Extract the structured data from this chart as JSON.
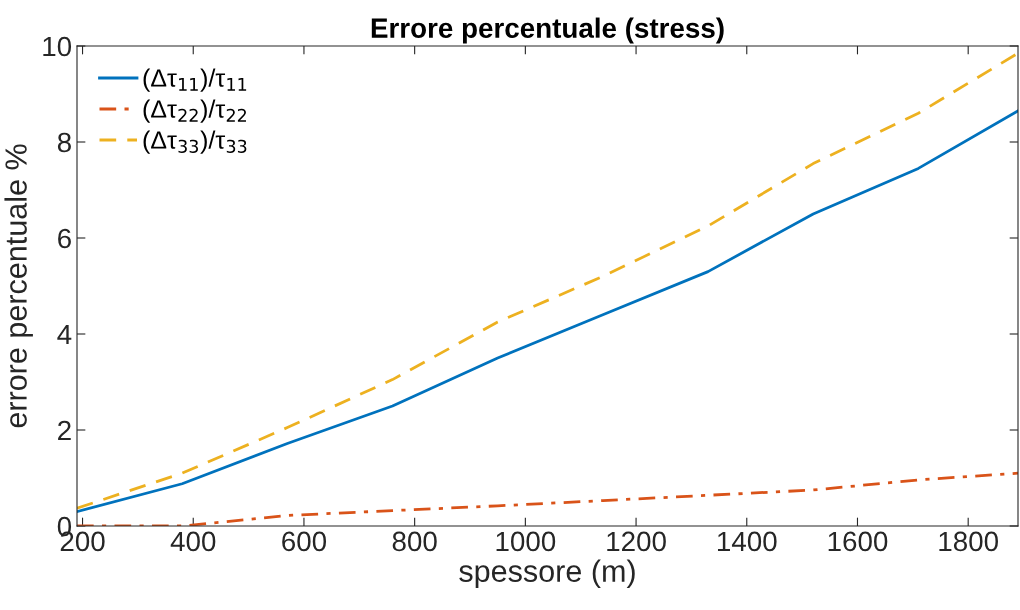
{
  "chart_data": {
    "type": "line",
    "title": "Errore percentuale (stress)",
    "xlabel": "spessore (m)",
    "ylabel": "errore percentuale %",
    "x": [
      190,
      380,
      570,
      760,
      950,
      1140,
      1330,
      1520,
      1710,
      1890
    ],
    "series": [
      {
        "name": "(Δτ$_{11}$)/τ$_{11}$",
        "color": "#0072bd",
        "line_style": "solid",
        "values": [
          0.3,
          0.88,
          1.72,
          2.5,
          3.5,
          4.4,
          5.3,
          6.5,
          7.45,
          8.65
        ]
      },
      {
        "name": "(Δτ$_{22}$)/τ$_{22}$",
        "color": "#d95319",
        "line_style": "dashdot",
        "values": [
          0,
          0,
          0.22,
          0.32,
          0.42,
          0.53,
          0.64,
          0.75,
          0.96,
          1.1
        ]
      },
      {
        "name": "(Δτ$_{33}$)/τ$_{33}$",
        "color": "#edb120",
        "line_style": "dashed",
        "values": [
          0.37,
          1.1,
          2.05,
          3.05,
          4.25,
          5.2,
          6.25,
          7.55,
          8.6,
          9.85
        ]
      }
    ],
    "xlim": [
      190,
      1890
    ],
    "xticks": [
      200,
      400,
      600,
      800,
      1000,
      1200,
      1400,
      1600,
      1800
    ],
    "ylim": [
      0,
      10
    ],
    "yticks": [
      0,
      2,
      4,
      6,
      8,
      10
    ],
    "grid": false,
    "legend": "top left",
    "marker": "none"
  }
}
